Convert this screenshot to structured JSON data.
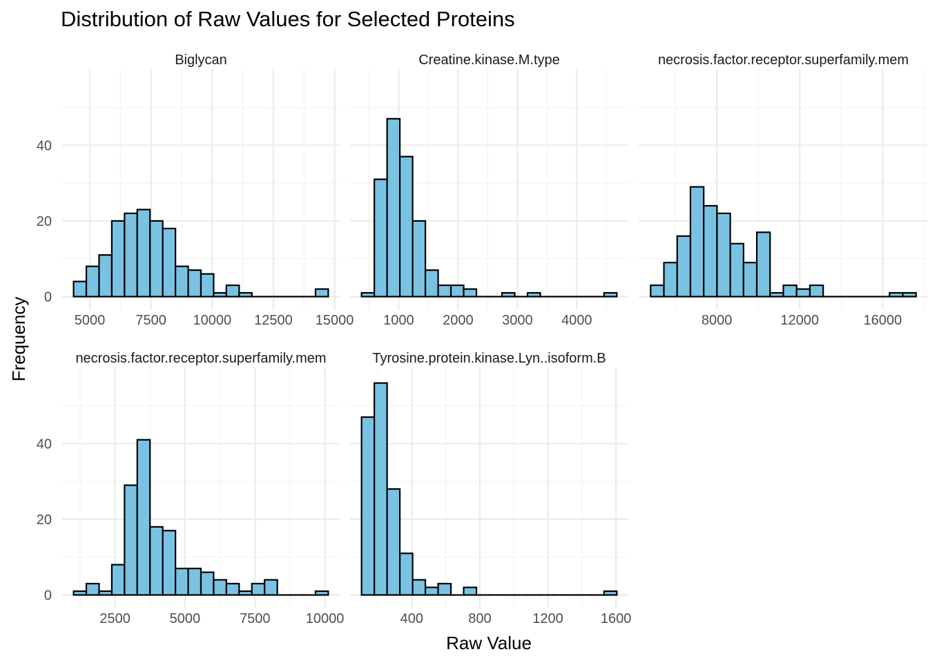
{
  "chart_data": {
    "type": "bar",
    "title": "Distribution of Raw Values for Selected Proteins",
    "xlabel": "Raw Value",
    "ylabel": "Frequency",
    "grid": true,
    "bar_fill": "#7ac2e3",
    "bar_stroke": "#000000",
    "grid_color": "#ebebeb",
    "y_ticks": [
      0,
      20,
      40
    ],
    "facets": [
      {
        "label": "Biglycan",
        "x_ticks": [
          "5000",
          "7500",
          "10000",
          "12500",
          "15000"
        ],
        "bins": [
          {
            "x0": 4340,
            "x1": 4860,
            "count": 4
          },
          {
            "x0": 4860,
            "x1": 5380,
            "count": 8
          },
          {
            "x0": 5380,
            "x1": 5900,
            "count": 11
          },
          {
            "x0": 5900,
            "x1": 6420,
            "count": 20
          },
          {
            "x0": 6420,
            "x1": 6940,
            "count": 22
          },
          {
            "x0": 6940,
            "x1": 7460,
            "count": 23
          },
          {
            "x0": 7460,
            "x1": 7980,
            "count": 20
          },
          {
            "x0": 7980,
            "x1": 8500,
            "count": 18
          },
          {
            "x0": 8500,
            "x1": 9020,
            "count": 8
          },
          {
            "x0": 9020,
            "x1": 9540,
            "count": 7
          },
          {
            "x0": 9540,
            "x1": 10060,
            "count": 6
          },
          {
            "x0": 10060,
            "x1": 10580,
            "count": 1
          },
          {
            "x0": 10580,
            "x1": 11100,
            "count": 3
          },
          {
            "x0": 11100,
            "x1": 11620,
            "count": 1
          },
          {
            "x0": 11620,
            "x1": 12140,
            "count": 0
          },
          {
            "x0": 12140,
            "x1": 12660,
            "count": 0
          },
          {
            "x0": 12660,
            "x1": 13180,
            "count": 0
          },
          {
            "x0": 13180,
            "x1": 13700,
            "count": 0
          },
          {
            "x0": 13700,
            "x1": 14220,
            "count": 0
          },
          {
            "x0": 14220,
            "x1": 14740,
            "count": 2
          }
        ]
      },
      {
        "label": "Creatine.kinase.M.type",
        "x_ticks": [
          "1000",
          "2000",
          "3000",
          "4000"
        ],
        "bins": [
          {
            "x0": 375,
            "x1": 590,
            "count": 1
          },
          {
            "x0": 590,
            "x1": 805,
            "count": 31
          },
          {
            "x0": 805,
            "x1": 1020,
            "count": 47
          },
          {
            "x0": 1020,
            "x1": 1235,
            "count": 37
          },
          {
            "x0": 1235,
            "x1": 1450,
            "count": 20
          },
          {
            "x0": 1450,
            "x1": 1665,
            "count": 7
          },
          {
            "x0": 1665,
            "x1": 1880,
            "count": 3
          },
          {
            "x0": 1880,
            "x1": 2095,
            "count": 3
          },
          {
            "x0": 2095,
            "x1": 2310,
            "count": 2
          },
          {
            "x0": 2310,
            "x1": 2525,
            "count": 0
          },
          {
            "x0": 2525,
            "x1": 2740,
            "count": 0
          },
          {
            "x0": 2740,
            "x1": 2955,
            "count": 1
          },
          {
            "x0": 2955,
            "x1": 3170,
            "count": 0
          },
          {
            "x0": 3170,
            "x1": 3385,
            "count": 1
          },
          {
            "x0": 3385,
            "x1": 3600,
            "count": 0
          },
          {
            "x0": 3600,
            "x1": 3815,
            "count": 0
          },
          {
            "x0": 3815,
            "x1": 4030,
            "count": 0
          },
          {
            "x0": 4030,
            "x1": 4245,
            "count": 0
          },
          {
            "x0": 4245,
            "x1": 4460,
            "count": 0
          },
          {
            "x0": 4460,
            "x1": 4675,
            "count": 1
          }
        ]
      },
      {
        "label": "necrosis.factor.receptor.superfamily.mem",
        "x_ticks": [
          "8000",
          "12000",
          "16000"
        ],
        "bins": [
          {
            "x0": 4810,
            "x1": 5450,
            "count": 3
          },
          {
            "x0": 5450,
            "x1": 6090,
            "count": 9
          },
          {
            "x0": 6090,
            "x1": 6730,
            "count": 16
          },
          {
            "x0": 6730,
            "x1": 7370,
            "count": 29
          },
          {
            "x0": 7370,
            "x1": 8010,
            "count": 24
          },
          {
            "x0": 8010,
            "x1": 8650,
            "count": 22
          },
          {
            "x0": 8650,
            "x1": 9290,
            "count": 14
          },
          {
            "x0": 9290,
            "x1": 9930,
            "count": 9
          },
          {
            "x0": 9930,
            "x1": 10570,
            "count": 17
          },
          {
            "x0": 10570,
            "x1": 11210,
            "count": 1
          },
          {
            "x0": 11210,
            "x1": 11850,
            "count": 3
          },
          {
            "x0": 11850,
            "x1": 12490,
            "count": 2
          },
          {
            "x0": 12490,
            "x1": 13130,
            "count": 3
          },
          {
            "x0": 13130,
            "x1": 13770,
            "count": 0
          },
          {
            "x0": 13770,
            "x1": 14410,
            "count": 0
          },
          {
            "x0": 14410,
            "x1": 15050,
            "count": 0
          },
          {
            "x0": 15050,
            "x1": 15690,
            "count": 0
          },
          {
            "x0": 15690,
            "x1": 16330,
            "count": 0
          },
          {
            "x0": 16330,
            "x1": 16970,
            "count": 1
          },
          {
            "x0": 16970,
            "x1": 17610,
            "count": 1
          }
        ]
      },
      {
        "label": "necrosis.factor.receptor.superfamily.mem",
        "x_ticks": [
          "2500",
          "5000",
          "7500",
          "10000"
        ],
        "bins": [
          {
            "x0": 1020,
            "x1": 1475,
            "count": 1
          },
          {
            "x0": 1475,
            "x1": 1930,
            "count": 3
          },
          {
            "x0": 1930,
            "x1": 2385,
            "count": 1
          },
          {
            "x0": 2385,
            "x1": 2840,
            "count": 8
          },
          {
            "x0": 2840,
            "x1": 3295,
            "count": 29
          },
          {
            "x0": 3295,
            "x1": 3750,
            "count": 41
          },
          {
            "x0": 3750,
            "x1": 4205,
            "count": 18
          },
          {
            "x0": 4205,
            "x1": 4660,
            "count": 17
          },
          {
            "x0": 4660,
            "x1": 5115,
            "count": 7
          },
          {
            "x0": 5115,
            "x1": 5570,
            "count": 7
          },
          {
            "x0": 5570,
            "x1": 6025,
            "count": 6
          },
          {
            "x0": 6025,
            "x1": 6480,
            "count": 4
          },
          {
            "x0": 6480,
            "x1": 6935,
            "count": 3
          },
          {
            "x0": 6935,
            "x1": 7390,
            "count": 1
          },
          {
            "x0": 7390,
            "x1": 7845,
            "count": 3
          },
          {
            "x0": 7845,
            "x1": 8300,
            "count": 4
          },
          {
            "x0": 8300,
            "x1": 8755,
            "count": 0
          },
          {
            "x0": 8755,
            "x1": 9210,
            "count": 0
          },
          {
            "x0": 9210,
            "x1": 9665,
            "count": 0
          },
          {
            "x0": 9665,
            "x1": 10120,
            "count": 1
          }
        ]
      },
      {
        "label": "Tyrosine.protein.kinase.Lyn..isoform.B",
        "x_ticks": [
          "400",
          "800",
          "1200",
          "1600"
        ],
        "bins": [
          {
            "x0": 105,
            "x1": 180,
            "count": 47
          },
          {
            "x0": 180,
            "x1": 255,
            "count": 56
          },
          {
            "x0": 255,
            "x1": 330,
            "count": 28
          },
          {
            "x0": 330,
            "x1": 405,
            "count": 11
          },
          {
            "x0": 405,
            "x1": 480,
            "count": 4
          },
          {
            "x0": 480,
            "x1": 555,
            "count": 2
          },
          {
            "x0": 555,
            "x1": 630,
            "count": 3
          },
          {
            "x0": 630,
            "x1": 705,
            "count": 0
          },
          {
            "x0": 705,
            "x1": 780,
            "count": 2
          },
          {
            "x0": 780,
            "x1": 855,
            "count": 0
          },
          {
            "x0": 855,
            "x1": 930,
            "count": 0
          },
          {
            "x0": 930,
            "x1": 1005,
            "count": 0
          },
          {
            "x0": 1005,
            "x1": 1080,
            "count": 0
          },
          {
            "x0": 1080,
            "x1": 1155,
            "count": 0
          },
          {
            "x0": 1155,
            "x1": 1230,
            "count": 0
          },
          {
            "x0": 1230,
            "x1": 1305,
            "count": 0
          },
          {
            "x0": 1305,
            "x1": 1380,
            "count": 0
          },
          {
            "x0": 1380,
            "x1": 1455,
            "count": 0
          },
          {
            "x0": 1455,
            "x1": 1530,
            "count": 0
          },
          {
            "x0": 1530,
            "x1": 1605,
            "count": 1
          }
        ]
      }
    ]
  }
}
